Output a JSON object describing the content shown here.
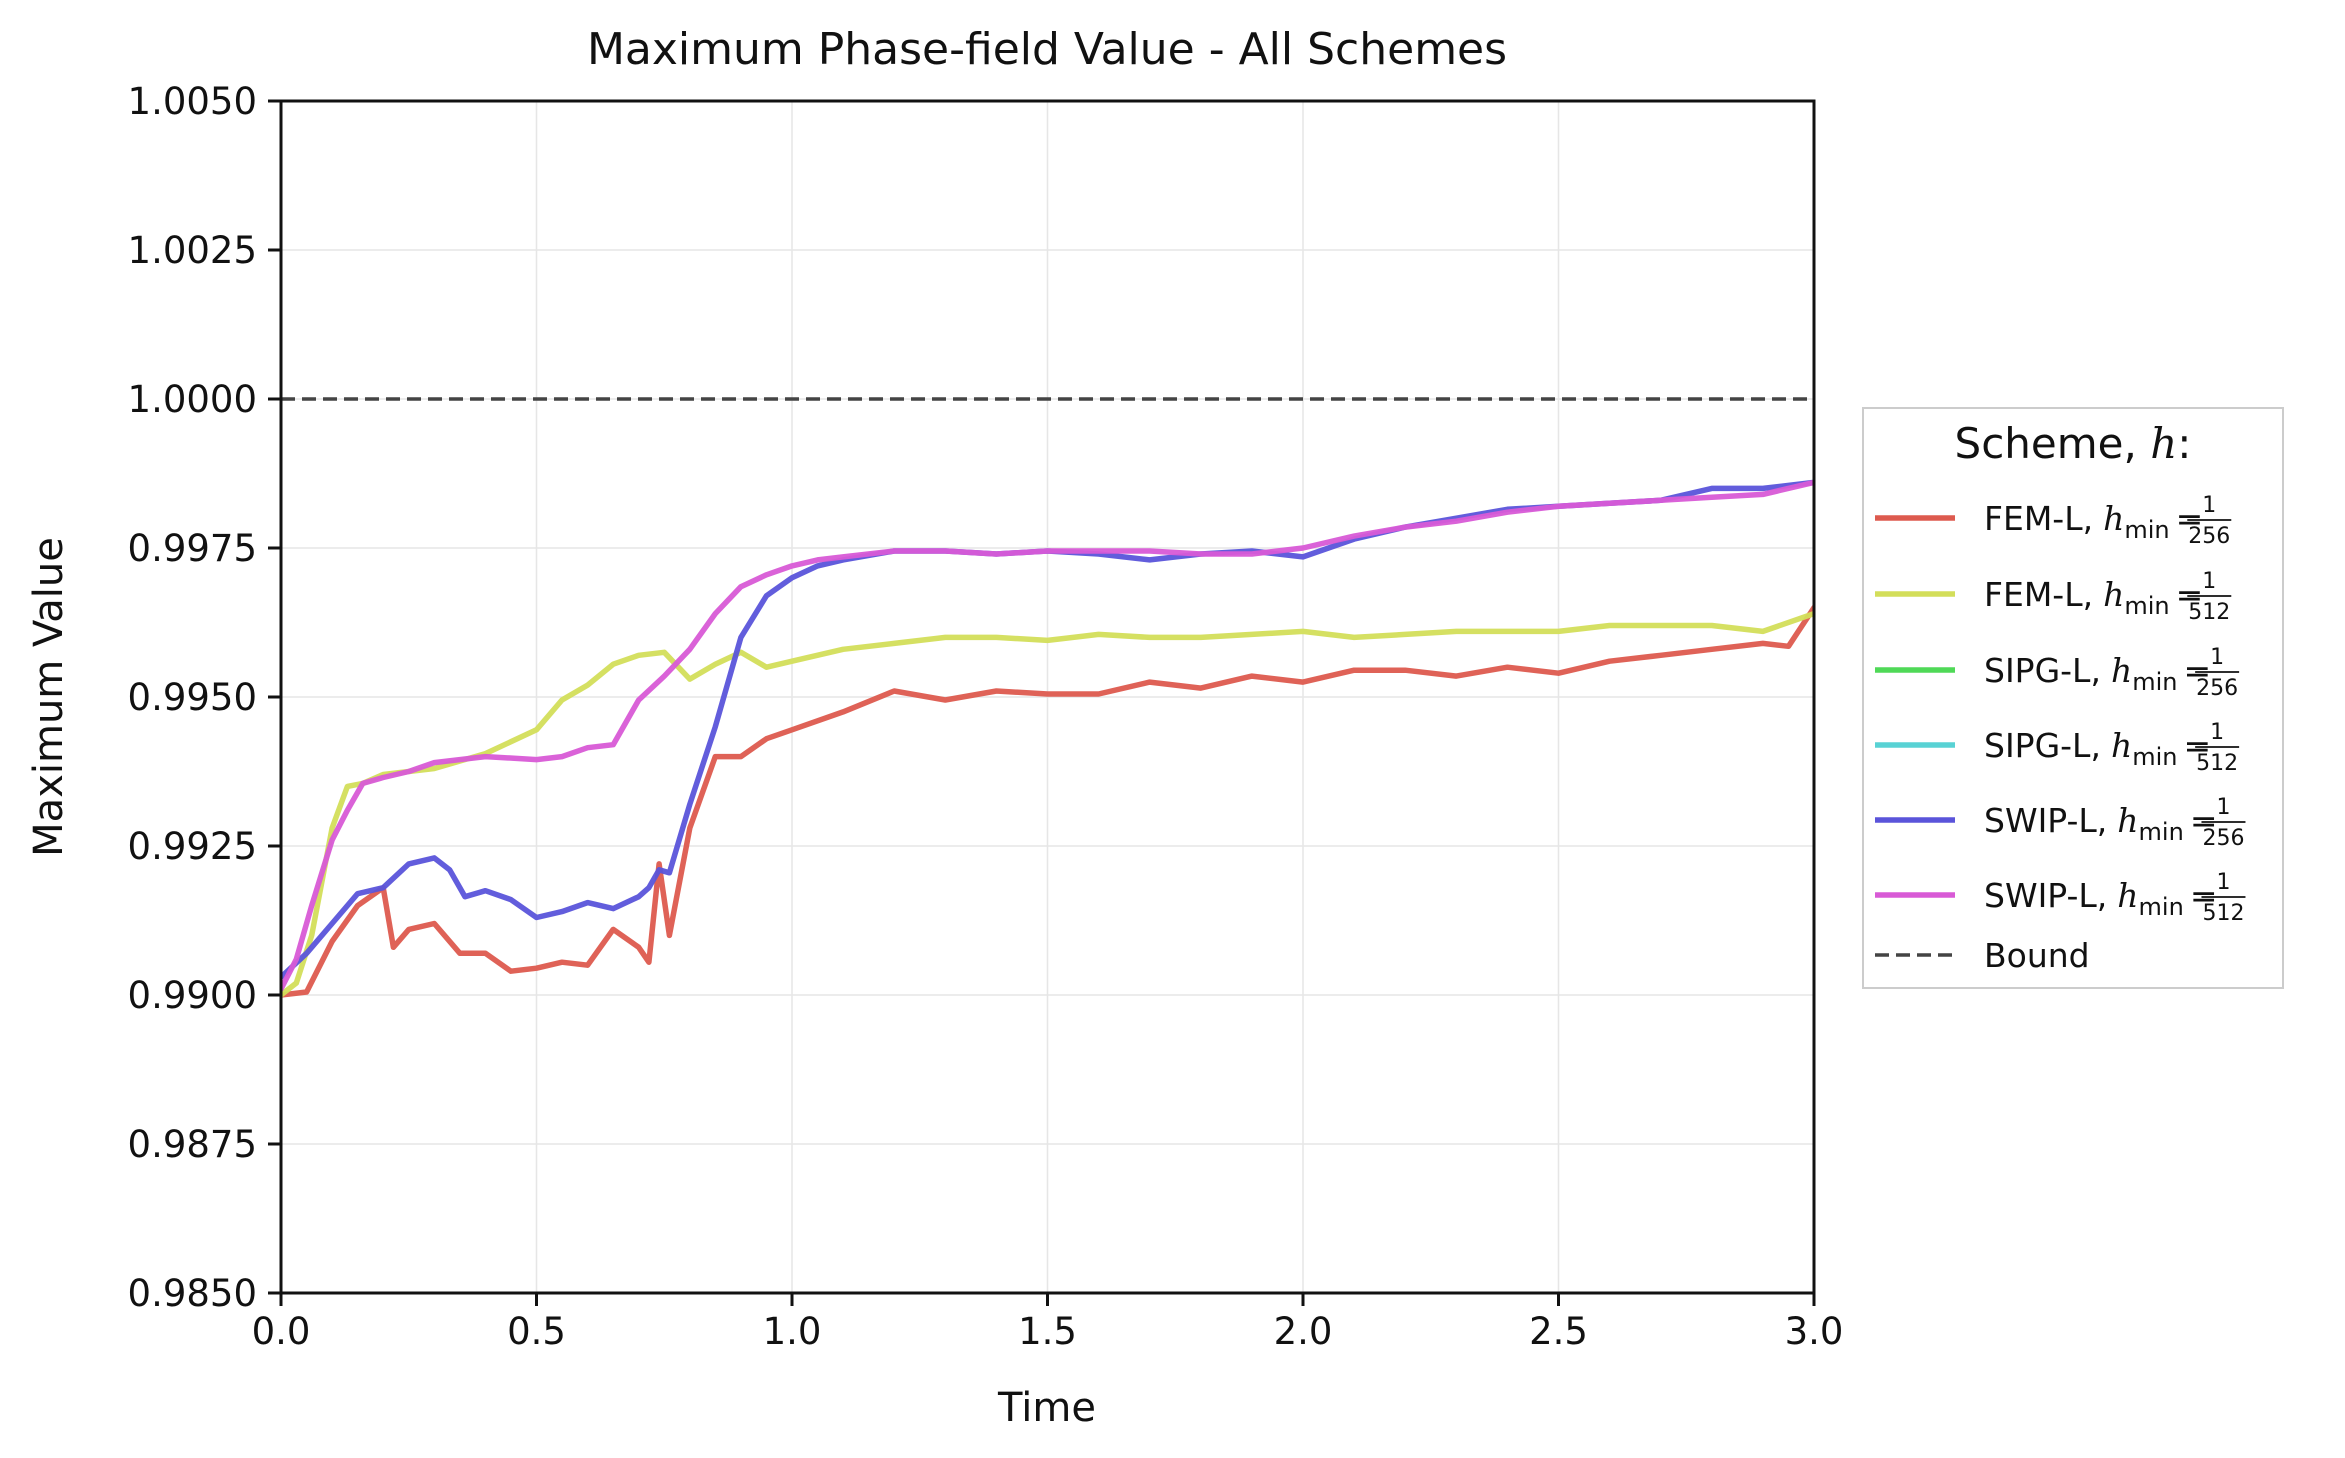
{
  "chart_data": {
    "type": "line",
    "title": "Maximum Phase-field Value - All Schemes",
    "xlabel": "Time",
    "ylabel": "Maximum Value",
    "xlim": [
      0.0,
      3.0
    ],
    "ylim": [
      0.985,
      1.005
    ],
    "xticks": [
      "0.0",
      "0.5",
      "1.0",
      "1.5",
      "2.0",
      "2.5",
      "3.0"
    ],
    "yticks": [
      "0.9850",
      "0.9875",
      "0.9900",
      "0.9925",
      "0.9950",
      "0.9975",
      "1.0000",
      "1.0025",
      "1.0050"
    ],
    "grid": true,
    "legend": {
      "title_prefix": "Scheme, ",
      "title_var": "h",
      "title_suffix": ":",
      "placement": "center-right outside",
      "entries": [
        {
          "scheme": "FEM-L,",
          "var": "h",
          "sub": "min",
          "num": "1",
          "den": "256",
          "color": "#dd5a4e"
        },
        {
          "scheme": "FEM-L,",
          "var": "h",
          "sub": "min",
          "num": "1",
          "den": "512",
          "color": "#d3de5a"
        },
        {
          "scheme": "SIPG-L,",
          "var": "h",
          "sub": "min",
          "num": "1",
          "den": "256",
          "color": "#4fd957"
        },
        {
          "scheme": "SIPG-L,",
          "var": "h",
          "sub": "min",
          "num": "1",
          "den": "512",
          "color": "#58d2d4"
        },
        {
          "scheme": "SWIP-L,",
          "var": "h",
          "sub": "min",
          "num": "1",
          "den": "256",
          "color": "#5a54da"
        },
        {
          "scheme": "SWIP-L,",
          "var": "h",
          "sub": "min",
          "num": "1",
          "den": "512",
          "color": "#d85ad6"
        },
        {
          "scheme": "Bound",
          "color": "#444444",
          "dashed": true
        }
      ]
    },
    "bound": {
      "name": "Bound",
      "y": 1.0,
      "color": "#444444"
    },
    "series": [
      {
        "name": "FEM-L, h_min = 1/256",
        "color": "#dd5a4e",
        "x": [
          0.0,
          0.05,
          0.1,
          0.15,
          0.2,
          0.22,
          0.25,
          0.3,
          0.35,
          0.4,
          0.45,
          0.5,
          0.55,
          0.6,
          0.65,
          0.7,
          0.72,
          0.74,
          0.76,
          0.8,
          0.85,
          0.9,
          0.95,
          1.0,
          1.1,
          1.2,
          1.3,
          1.4,
          1.5,
          1.6,
          1.7,
          1.8,
          1.9,
          2.0,
          2.1,
          2.2,
          2.3,
          2.4,
          2.5,
          2.6,
          2.7,
          2.8,
          2.9,
          2.95,
          3.0
        ],
        "y": [
          0.99,
          0.99005,
          0.9909,
          0.9915,
          0.9918,
          0.9908,
          0.9911,
          0.9912,
          0.9907,
          0.9907,
          0.9904,
          0.99045,
          0.99055,
          0.9905,
          0.9911,
          0.9908,
          0.99055,
          0.9922,
          0.991,
          0.9928,
          0.994,
          0.994,
          0.9943,
          0.99445,
          0.99475,
          0.9951,
          0.99495,
          0.9951,
          0.99505,
          0.99505,
          0.99525,
          0.99515,
          0.99535,
          0.99525,
          0.99545,
          0.99545,
          0.99535,
          0.9955,
          0.9954,
          0.9956,
          0.9957,
          0.9958,
          0.9959,
          0.99585,
          0.9965
        ]
      },
      {
        "name": "FEM-L, h_min = 1/512",
        "color": "#d3de5a",
        "x": [
          0.0,
          0.03,
          0.06,
          0.1,
          0.13,
          0.16,
          0.2,
          0.25,
          0.3,
          0.4,
          0.5,
          0.55,
          0.6,
          0.65,
          0.7,
          0.75,
          0.8,
          0.85,
          0.9,
          0.95,
          1.0,
          1.1,
          1.2,
          1.3,
          1.4,
          1.5,
          1.6,
          1.7,
          1.8,
          1.9,
          2.0,
          2.1,
          2.2,
          2.3,
          2.4,
          2.5,
          2.6,
          2.7,
          2.8,
          2.9,
          3.0
        ],
        "y": [
          0.99,
          0.9902,
          0.991,
          0.9928,
          0.9935,
          0.99355,
          0.9937,
          0.99375,
          0.9938,
          0.99405,
          0.99445,
          0.99495,
          0.9952,
          0.99555,
          0.9957,
          0.99575,
          0.9953,
          0.99555,
          0.99575,
          0.9955,
          0.9956,
          0.9958,
          0.9959,
          0.996,
          0.996,
          0.99595,
          0.99605,
          0.996,
          0.996,
          0.99605,
          0.9961,
          0.996,
          0.99605,
          0.9961,
          0.9961,
          0.9961,
          0.9962,
          0.9962,
          0.9962,
          0.9961,
          0.9964
        ]
      },
      {
        "name": "SWIP-L, h_min = 1/256",
        "color": "#5a54da",
        "x": [
          0.0,
          0.05,
          0.1,
          0.15,
          0.2,
          0.25,
          0.3,
          0.33,
          0.36,
          0.4,
          0.45,
          0.5,
          0.55,
          0.6,
          0.65,
          0.7,
          0.72,
          0.74,
          0.76,
          0.8,
          0.85,
          0.9,
          0.95,
          1.0,
          1.05,
          1.1,
          1.2,
          1.3,
          1.4,
          1.5,
          1.6,
          1.7,
          1.8,
          1.9,
          2.0,
          2.1,
          2.2,
          2.3,
          2.4,
          2.5,
          2.6,
          2.7,
          2.8,
          2.9,
          3.0
        ],
        "y": [
          0.9903,
          0.9907,
          0.9912,
          0.9917,
          0.9918,
          0.9922,
          0.9923,
          0.9921,
          0.99165,
          0.99175,
          0.9916,
          0.9913,
          0.9914,
          0.99155,
          0.99145,
          0.99165,
          0.9918,
          0.9921,
          0.99205,
          0.9932,
          0.9945,
          0.996,
          0.9967,
          0.997,
          0.9972,
          0.9973,
          0.99745,
          0.99745,
          0.9974,
          0.99745,
          0.9974,
          0.9973,
          0.9974,
          0.99745,
          0.99735,
          0.99765,
          0.99785,
          0.998,
          0.99815,
          0.9982,
          0.99825,
          0.9983,
          0.9985,
          0.9985,
          0.9986
        ]
      },
      {
        "name": "SWIP-L, h_min = 1/512",
        "color": "#d85ad6",
        "x": [
          0.0,
          0.03,
          0.06,
          0.1,
          0.13,
          0.16,
          0.2,
          0.25,
          0.3,
          0.4,
          0.5,
          0.55,
          0.6,
          0.65,
          0.7,
          0.75,
          0.8,
          0.85,
          0.9,
          0.95,
          1.0,
          1.05,
          1.1,
          1.2,
          1.3,
          1.4,
          1.5,
          1.6,
          1.7,
          1.8,
          1.9,
          2.0,
          2.1,
          2.2,
          2.3,
          2.4,
          2.5,
          2.6,
          2.7,
          2.8,
          2.9,
          3.0
        ],
        "y": [
          0.9901,
          0.9906,
          0.9915,
          0.9926,
          0.9931,
          0.99355,
          0.99365,
          0.99375,
          0.9939,
          0.994,
          0.99395,
          0.994,
          0.99415,
          0.9942,
          0.99495,
          0.99535,
          0.9958,
          0.9964,
          0.99685,
          0.99705,
          0.9972,
          0.9973,
          0.99735,
          0.99745,
          0.99745,
          0.9974,
          0.99745,
          0.99745,
          0.99745,
          0.9974,
          0.9974,
          0.9975,
          0.9977,
          0.99785,
          0.99795,
          0.9981,
          0.9982,
          0.99825,
          0.9983,
          0.99835,
          0.9984,
          0.9986
        ]
      }
    ]
  }
}
